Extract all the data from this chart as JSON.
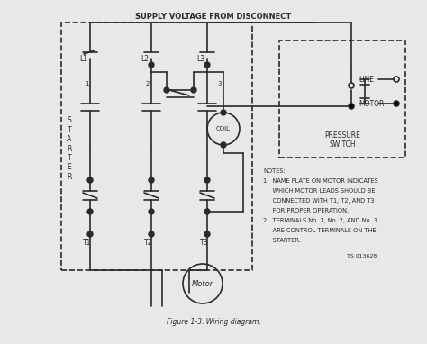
{
  "bg_color": "#e8e8e8",
  "line_color": "#2a2a2a",
  "title": "SUPPLY VOLTAGE FROM DISCONNECT",
  "figure_caption": "Figure 1-3. Wiring diagram.",
  "ts_label": "TS 013628",
  "starter_label": "S\nT\nA\nR\nT\nE\nR",
  "notes": [
    "NOTES:",
    "1.  NAME PLATE ON MOTOR INDICATES",
    "     WHICH MOTOR LEADS SHOULD BE",
    "     CONNECTED WITH T1, T2, AND T3",
    "     FOR PROPER OPERATION.",
    "2.  TERMINALS No. 1, No. 2, AND No. 3",
    "     ARE CONTROL TERMINALS ON THE",
    "     STARTER."
  ]
}
